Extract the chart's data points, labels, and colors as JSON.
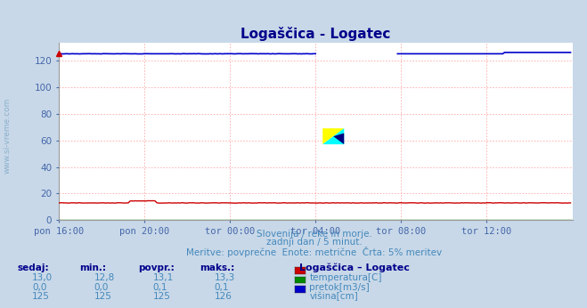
{
  "title": "Logaščica - Logatec",
  "title_color": "#00008B",
  "bg_color": "#c8d8e8",
  "plot_bg_color": "#ffffff",
  "grid_color_dotted": "#ffaaaa",
  "grid_color_solid": "#ffcccc",
  "xlabel_color": "#4466aa",
  "text_color": "#4488bb",
  "watermark_color": "#8ab0cc",
  "subtitle1": "Slovenija / reke in morje.",
  "subtitle2": "zadnji dan / 5 minut.",
  "subtitle3": "Meritve: povprečne  Enote: metrične  Črta: 5% meritev",
  "ylabel_left": "www.si-vreme.com",
  "ylim": [
    0,
    133
  ],
  "xlim": [
    0,
    288
  ],
  "xtick_labels": [
    "pon 16:00",
    "pon 20:00",
    "tor 00:00",
    "tor 04:00",
    "tor 08:00",
    "tor 12:00"
  ],
  "xtick_positions": [
    0,
    48,
    96,
    144,
    192,
    240
  ],
  "ytick_values": [
    0,
    20,
    40,
    60,
    80,
    100,
    120
  ],
  "temp_color": "#cc0000",
  "flow_color": "#008800",
  "height_color": "#0000cc",
  "legend_title": "Logaščica – Logatec",
  "legend_items": [
    {
      "label": "temperatura[C]",
      "color": "#cc0000"
    },
    {
      "label": "pretok[m3/s]",
      "color": "#008800"
    },
    {
      "label": "višina[cm]",
      "color": "#0000cc"
    }
  ],
  "table_headers": [
    "sedaj:",
    "min.:",
    "povpr.:",
    "maks.:"
  ],
  "table_rows": [
    [
      "13,0",
      "12,8",
      "13,1",
      "13,3"
    ],
    [
      "0,0",
      "0,0",
      "0,1",
      "0,1"
    ],
    [
      "125",
      "125",
      "125",
      "126"
    ]
  ],
  "num_points": 288,
  "temp_base": 13.0,
  "height_base": 125,
  "gap_start": 145,
  "gap_end": 190,
  "arrow_color": "#cc0000"
}
